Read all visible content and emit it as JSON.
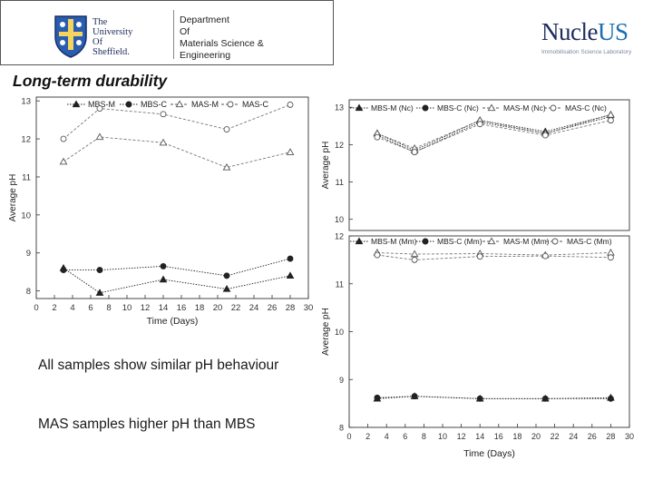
{
  "header": {
    "university_lines": [
      "The",
      "University",
      "Of",
      "Sheffield."
    ],
    "department_lines": [
      "Department",
      "Of",
      "Materials Science &",
      "Engineering"
    ],
    "brand_main": "Nucle",
    "brand_accent": "US",
    "brand_sub": "Immobilisation Science Laboratory"
  },
  "title": "Long-term durability",
  "bullets": [
    "All samples show similar pH behaviour",
    "MAS samples higher pH than MBS"
  ],
  "colors": {
    "line": "#222222",
    "line_light": "#777777",
    "brand": "#1c2c5c",
    "brand_accent": "#1e6fb0"
  },
  "chart_data": [
    {
      "type": "scatter",
      "xlabel": "Time (Days)",
      "ylabel": "Average pH",
      "xlim": [
        0,
        30
      ],
      "ylim": [
        7.8,
        13.1
      ],
      "xticks": [
        0,
        2,
        4,
        6,
        8,
        10,
        12,
        14,
        16,
        18,
        20,
        22,
        24,
        26,
        28,
        30
      ],
      "yticks": [
        8,
        9,
        10,
        11,
        12,
        13
      ],
      "legend_position": "top",
      "series": [
        {
          "name": "MBS-M",
          "marker": "triangle",
          "x": [
            3,
            7,
            14,
            21,
            28
          ],
          "values": [
            8.6,
            7.95,
            8.3,
            8.05,
            8.4
          ]
        },
        {
          "name": "MBS-C",
          "marker": "circle",
          "x": [
            3,
            7,
            14,
            21,
            28
          ],
          "values": [
            8.55,
            8.55,
            8.65,
            8.4,
            8.85
          ]
        },
        {
          "name": "MAS-M",
          "marker": "open-triangle",
          "x": [
            3,
            7,
            14,
            21,
            28
          ],
          "values": [
            11.4,
            12.05,
            11.9,
            11.25,
            11.65
          ]
        },
        {
          "name": "MAS-C",
          "marker": "open-circle",
          "x": [
            3,
            7,
            14,
            21,
            28
          ],
          "values": [
            12.0,
            12.8,
            12.65,
            12.25,
            12.9
          ]
        }
      ]
    },
    {
      "type": "scatter",
      "xlabel": "",
      "ylabel": "Average pH",
      "xlim": [
        0,
        30
      ],
      "ylim": [
        9.7,
        13.2
      ],
      "yticks": [
        10,
        11,
        12,
        13
      ],
      "legend_position": "top",
      "series": [
        {
          "name": "MBS-M (Nc)",
          "marker": "triangle",
          "x": [
            3,
            7,
            14,
            21,
            28
          ],
          "values": [
            12.3,
            11.85,
            12.65,
            12.35,
            12.8
          ]
        },
        {
          "name": "MBS-C (Nc)",
          "marker": "circle",
          "x": [
            3,
            7,
            14,
            21,
            28
          ],
          "values": [
            12.25,
            11.8,
            12.6,
            12.3,
            12.75
          ]
        },
        {
          "name": "MAS-M (Nc)",
          "marker": "open-triangle",
          "x": [
            3,
            7,
            14,
            21,
            28
          ],
          "values": [
            12.3,
            11.9,
            12.65,
            12.3,
            12.8
          ]
        },
        {
          "name": "MAS-C (Nc)",
          "marker": "open-circle",
          "x": [
            3,
            7,
            14,
            21,
            28
          ],
          "values": [
            12.2,
            11.8,
            12.55,
            12.25,
            12.65
          ]
        }
      ]
    },
    {
      "type": "scatter",
      "xlabel": "Time (Days)",
      "ylabel": "Average pH",
      "xlim": [
        0,
        30
      ],
      "ylim": [
        8.0,
        12.0
      ],
      "xticks": [
        0,
        2,
        4,
        6,
        8,
        10,
        12,
        14,
        16,
        18,
        20,
        22,
        24,
        26,
        28,
        30
      ],
      "yticks": [
        8,
        9,
        10,
        11,
        12
      ],
      "legend_position": "top",
      "series": [
        {
          "name": "MBS-M (Mm)",
          "marker": "triangle",
          "x": [
            3,
            7,
            14,
            21,
            28
          ],
          "values": [
            8.6,
            8.65,
            8.6,
            8.6,
            8.62
          ]
        },
        {
          "name": "MBS-C (Mm)",
          "marker": "circle",
          "x": [
            3,
            7,
            14,
            21,
            28
          ],
          "values": [
            8.62,
            8.65,
            8.6,
            8.6,
            8.6
          ]
        },
        {
          "name": "MAS-M (Mm)",
          "marker": "open-triangle",
          "x": [
            3,
            7,
            14,
            21,
            28
          ],
          "values": [
            11.65,
            11.62,
            11.63,
            11.6,
            11.65
          ]
        },
        {
          "name": "MAS-C (Mm)",
          "marker": "open-circle",
          "x": [
            3,
            7,
            14,
            21,
            28
          ],
          "values": [
            11.6,
            11.5,
            11.57,
            11.58,
            11.55
          ]
        }
      ]
    }
  ]
}
